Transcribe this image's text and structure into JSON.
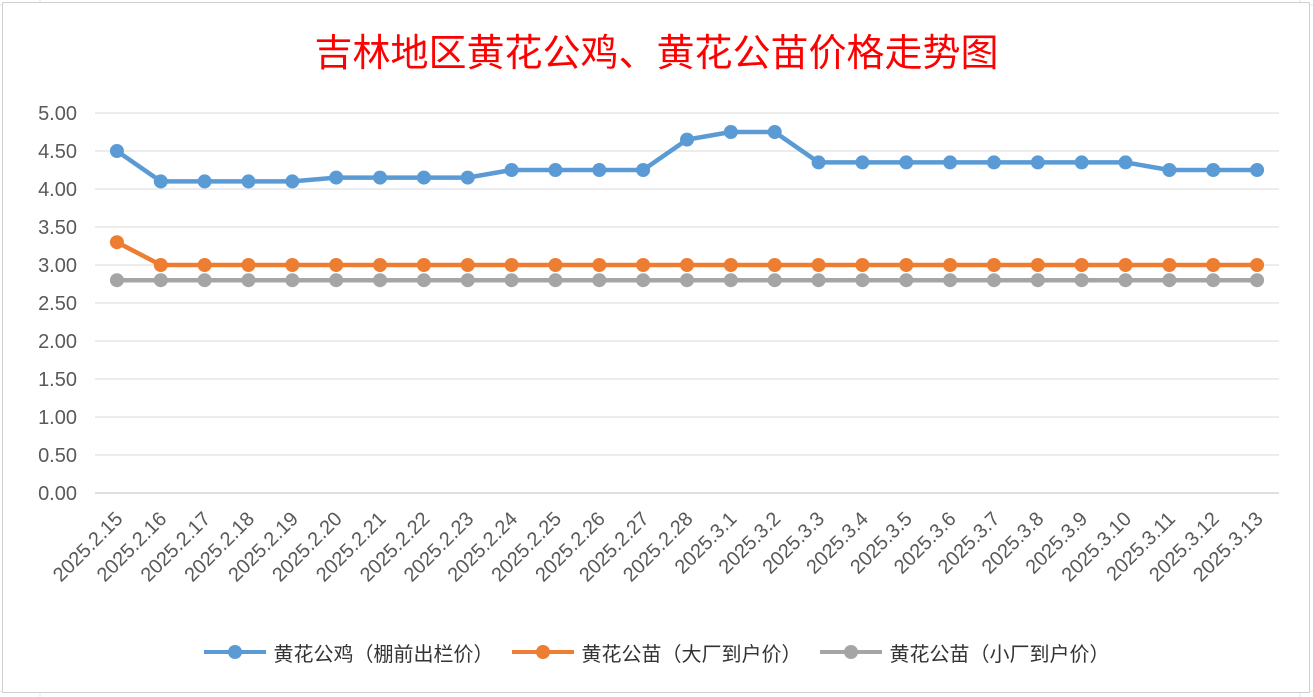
{
  "chart_data": {
    "type": "line",
    "title": "吉林地区黄花公鸡、黄花公苗价格走势图",
    "xlabel": "",
    "ylabel": "",
    "ylim": [
      0,
      5
    ],
    "yticks": [
      "0.00",
      "0.50",
      "1.00",
      "1.50",
      "2.00",
      "2.50",
      "3.00",
      "3.50",
      "4.00",
      "4.50",
      "5.00"
    ],
    "grid": true,
    "legend_position": "bottom",
    "categories": [
      "2025.2.15",
      "2025.2.16",
      "2025.2.17",
      "2025.2.18",
      "2025.2.19",
      "2025.2.20",
      "2025.2.21",
      "2025.2.22",
      "2025.2.23",
      "2025.2.24",
      "2025.2.25",
      "2025.2.26",
      "2025.2.27",
      "2025.2.28",
      "2025.3.1",
      "2025.3.2",
      "2025.3.3",
      "2025.3.4",
      "2025.3.5",
      "2025.3.6",
      "2025.3.7",
      "2025.3.8",
      "2025.3.9",
      "2025.3.10",
      "2025.3.11",
      "2025.3.12",
      "2025.3.13"
    ],
    "series": [
      {
        "name": "黄花公鸡（棚前出栏价）",
        "color": "#5B9BD5",
        "values": [
          4.5,
          4.1,
          4.1,
          4.1,
          4.1,
          4.15,
          4.15,
          4.15,
          4.15,
          4.25,
          4.25,
          4.25,
          4.25,
          4.65,
          4.75,
          4.75,
          4.35,
          4.35,
          4.35,
          4.35,
          4.35,
          4.35,
          4.35,
          4.35,
          4.25,
          4.25,
          4.25
        ]
      },
      {
        "name": "黄花公苗（大厂到户价）",
        "color": "#ED7D31",
        "values": [
          3.3,
          3.0,
          3.0,
          3.0,
          3.0,
          3.0,
          3.0,
          3.0,
          3.0,
          3.0,
          3.0,
          3.0,
          3.0,
          3.0,
          3.0,
          3.0,
          3.0,
          3.0,
          3.0,
          3.0,
          3.0,
          3.0,
          3.0,
          3.0,
          3.0,
          3.0,
          3.0
        ]
      },
      {
        "name": "黄花公苗（小厂到户价）",
        "color": "#A5A5A5",
        "values": [
          2.8,
          2.8,
          2.8,
          2.8,
          2.8,
          2.8,
          2.8,
          2.8,
          2.8,
          2.8,
          2.8,
          2.8,
          2.8,
          2.8,
          2.8,
          2.8,
          2.8,
          2.8,
          2.8,
          2.8,
          2.8,
          2.8,
          2.8,
          2.8,
          2.8,
          2.8,
          2.8
        ]
      }
    ]
  }
}
